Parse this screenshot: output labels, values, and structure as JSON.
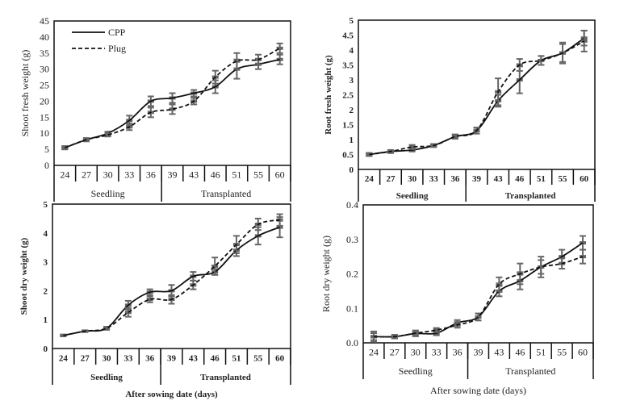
{
  "chart_data": [
    {
      "type": "line",
      "title": "",
      "ylabel": "Shoot fresh weight (g)",
      "xlabel": "",
      "ylim": [
        0,
        45
      ],
      "yticks": [
        0,
        5,
        10,
        15,
        20,
        25,
        30,
        35,
        40,
        45
      ],
      "ytick_labels": [
        "0",
        "5",
        "10",
        "15",
        "20",
        "25",
        "30",
        "35",
        "40",
        "45"
      ],
      "categories": [
        "24",
        "27",
        "30",
        "33",
        "36",
        "39",
        "43",
        "46",
        "51",
        "55",
        "60"
      ],
      "groups": [
        {
          "label": "Seedling",
          "span": 5
        },
        {
          "label": "Transplanted",
          "span": 6
        }
      ],
      "legend": {
        "placement": "top-left",
        "entries": [
          "CPP",
          "Plug"
        ]
      },
      "series": [
        {
          "name": "CPP",
          "style": "solid",
          "values": [
            5.5,
            8,
            10,
            14,
            20,
            21,
            22.5,
            24.5,
            30,
            31.5,
            33
          ],
          "errors": [
            0.5,
            0.5,
            0.5,
            1.5,
            1.5,
            1.5,
            1,
            2,
            3,
            1.5,
            1.5
          ]
        },
        {
          "name": "Plug",
          "style": "dashed",
          "values": [
            5.5,
            8,
            9.5,
            12,
            16.5,
            17.5,
            20,
            27.5,
            32.5,
            33,
            36.5
          ],
          "errors": [
            0.5,
            0.5,
            0.5,
            1,
            1.5,
            1.5,
            1,
            2,
            2.5,
            1.5,
            1.5
          ]
        }
      ]
    },
    {
      "type": "line",
      "title": "",
      "ylabel": "Root fresh weight (g)",
      "xlabel": "",
      "ylim": [
        0,
        5
      ],
      "yticks": [
        0,
        0.5,
        1,
        1.5,
        2,
        2.5,
        3,
        3.5,
        4,
        4.5,
        5
      ],
      "ytick_labels": [
        "0",
        "0.5",
        "1",
        "1.5",
        "2",
        "2.5",
        "3",
        "3.5",
        "4",
        "4.5",
        "5"
      ],
      "categories": [
        "24",
        "27",
        "30",
        "33",
        "36",
        "39",
        "43",
        "46",
        "51",
        "55",
        "60"
      ],
      "groups": [
        {
          "label": "Seedling",
          "span": 5
        },
        {
          "label": "Transplanted",
          "span": 6
        }
      ],
      "series": [
        {
          "name": "CPP",
          "style": "solid",
          "values": [
            0.5,
            0.6,
            0.65,
            0.8,
            1.1,
            1.3,
            2.3,
            3.0,
            3.65,
            3.9,
            4.4
          ],
          "errors": [
            0.05,
            0.05,
            0.05,
            0.05,
            0.07,
            0.1,
            0.2,
            0.45,
            0.15,
            0.3,
            0.25
          ]
        },
        {
          "name": "Plug",
          "style": "dashed",
          "values": [
            0.5,
            0.6,
            0.75,
            0.8,
            1.1,
            1.3,
            2.6,
            3.5,
            3.65,
            3.9,
            4.3
          ],
          "errors": [
            0.05,
            0.05,
            0.07,
            0.05,
            0.07,
            0.1,
            0.45,
            0.2,
            0.15,
            0.35,
            0.35
          ]
        }
      ]
    },
    {
      "type": "line",
      "title": "",
      "ylabel": "Shoot dry weight (g)",
      "xlabel": "After sowing date (days)",
      "ylim": [
        0,
        5
      ],
      "yticks": [
        0,
        1,
        2,
        3,
        4,
        5
      ],
      "ytick_labels": [
        "0",
        "1",
        "2",
        "3",
        "4",
        "5"
      ],
      "categories": [
        "24",
        "27",
        "30",
        "33",
        "36",
        "39",
        "43",
        "46",
        "51",
        "55",
        "60"
      ],
      "groups": [
        {
          "label": "Seedling",
          "span": 5
        },
        {
          "label": "Transplanted",
          "span": 6
        }
      ],
      "series": [
        {
          "name": "CPP",
          "style": "solid",
          "values": [
            0.45,
            0.6,
            0.7,
            1.5,
            1.95,
            2.0,
            2.5,
            2.65,
            3.4,
            3.9,
            4.2
          ],
          "errors": [
            0.03,
            0.03,
            0.05,
            0.15,
            0.1,
            0.2,
            0.15,
            0.1,
            0.2,
            0.3,
            0.35
          ]
        },
        {
          "name": "Plug",
          "style": "dashed",
          "values": [
            0.45,
            0.6,
            0.7,
            1.25,
            1.7,
            1.7,
            2.2,
            2.85,
            3.6,
            4.3,
            4.45
          ],
          "errors": [
            0.03,
            0.03,
            0.05,
            0.15,
            0.1,
            0.15,
            0.15,
            0.3,
            0.3,
            0.2,
            0.2
          ]
        }
      ]
    },
    {
      "type": "line",
      "title": "",
      "ylabel": "Root dry weight (g)",
      "xlabel": "After sowing date (days)",
      "ylim": [
        0,
        0.4
      ],
      "yticks": [
        0,
        0.1,
        0.2,
        0.3,
        0.4
      ],
      "ytick_labels": [
        "0.0",
        "0.1",
        "0.2",
        "0.3",
        "0.4"
      ],
      "categories": [
        "24",
        "27",
        "30",
        "33",
        "36",
        "39",
        "43",
        "46",
        "51",
        "55",
        "60"
      ],
      "groups": [
        {
          "label": "Seedling",
          "span": 5
        },
        {
          "label": "Transplanted",
          "span": 6
        }
      ],
      "series": [
        {
          "name": "CPP",
          "style": "solid",
          "values": [
            0.018,
            0.018,
            0.027,
            0.028,
            0.058,
            0.075,
            0.15,
            0.18,
            0.22,
            0.25,
            0.29
          ],
          "errors": [
            0.015,
            0.005,
            0.008,
            0.006,
            0.008,
            0.01,
            0.015,
            0.025,
            0.03,
            0.02,
            0.02
          ]
        },
        {
          "name": "Plug",
          "style": "dashed",
          "values": [
            0.018,
            0.018,
            0.028,
            0.037,
            0.052,
            0.075,
            0.17,
            0.2,
            0.22,
            0.23,
            0.25
          ],
          "errors": [
            0.01,
            0.005,
            0.008,
            0.006,
            0.008,
            0.01,
            0.02,
            0.03,
            0.02,
            0.015,
            0.02
          ]
        }
      ]
    }
  ]
}
